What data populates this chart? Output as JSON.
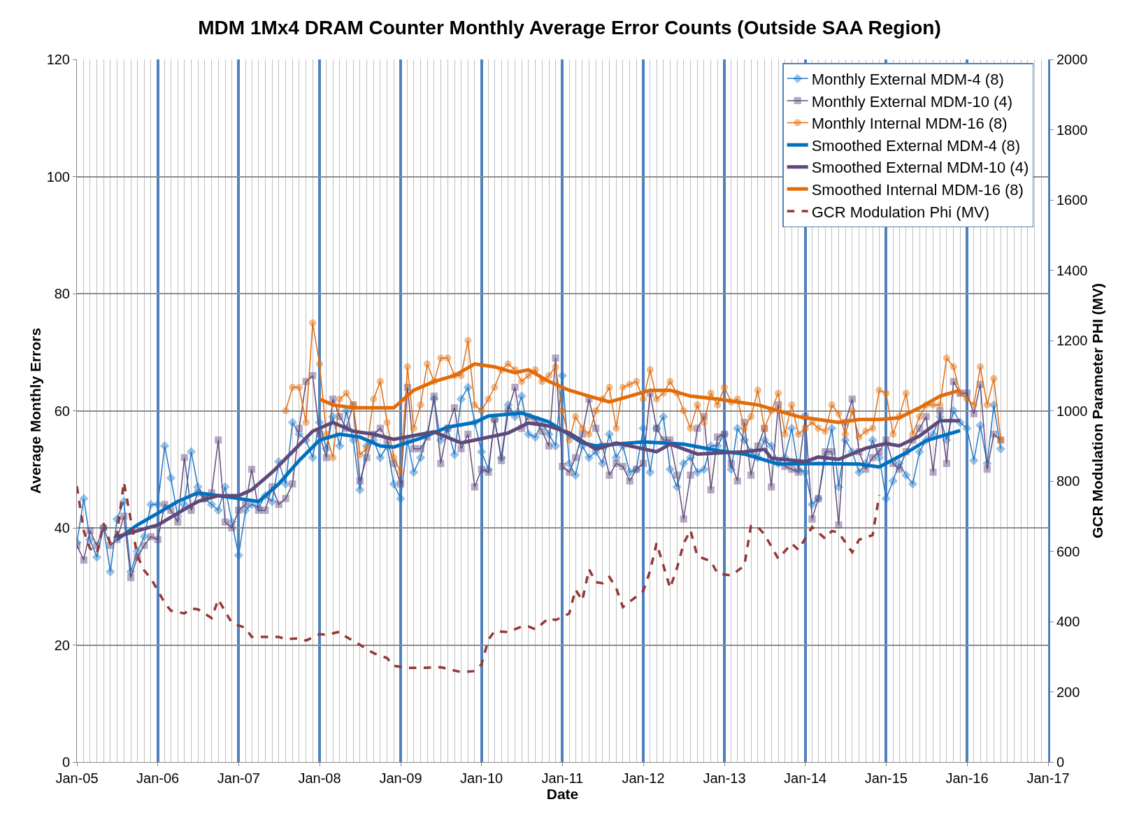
{
  "chart_data": {
    "type": "line",
    "title": "MDM 1Mx4 DRAM Counter Monthly Average Error Counts (Outside SAA Region)",
    "xlabel": "Date",
    "ylabel": "Average Monthly Errors",
    "y2label": "GCR Modulation Parameter PHI (MV)",
    "x": [
      "2005-01",
      "2005-02",
      "2005-03",
      "2005-04",
      "2005-05",
      "2005-06",
      "2005-07",
      "2005-08",
      "2005-09",
      "2005-10",
      "2005-11",
      "2005-12",
      "2006-01",
      "2006-02",
      "2006-03",
      "2006-04",
      "2006-05",
      "2006-06",
      "2006-07",
      "2006-08",
      "2006-09",
      "2006-10",
      "2006-11",
      "2006-12",
      "2007-01",
      "2007-02",
      "2007-03",
      "2007-04",
      "2007-05",
      "2007-06",
      "2007-07",
      "2007-08",
      "2007-09",
      "2007-10",
      "2007-11",
      "2007-12",
      "2008-01",
      "2008-02",
      "2008-03",
      "2008-04",
      "2008-05",
      "2008-06",
      "2008-07",
      "2008-08",
      "2008-09",
      "2008-10",
      "2008-11",
      "2008-12",
      "2009-01",
      "2009-02",
      "2009-03",
      "2009-04",
      "2009-05",
      "2009-06",
      "2009-07",
      "2009-08",
      "2009-09",
      "2009-10",
      "2009-11",
      "2009-12",
      "2010-01",
      "2010-02",
      "2010-03",
      "2010-04",
      "2010-05",
      "2010-06",
      "2010-07",
      "2010-08",
      "2010-09",
      "2010-10",
      "2010-11",
      "2010-12",
      "2011-01",
      "2011-02",
      "2011-03",
      "2011-04",
      "2011-05",
      "2011-06",
      "2011-07",
      "2011-08",
      "2011-09",
      "2011-10",
      "2011-11",
      "2011-12",
      "2012-01",
      "2012-02",
      "2012-03",
      "2012-04",
      "2012-05",
      "2012-06",
      "2012-07",
      "2012-08",
      "2012-09",
      "2012-10",
      "2012-11",
      "2012-12",
      "2013-01",
      "2013-02",
      "2013-03",
      "2013-04",
      "2013-05",
      "2013-06",
      "2013-07",
      "2013-08",
      "2013-09",
      "2013-10",
      "2013-11",
      "2013-12",
      "2014-01",
      "2014-02",
      "2014-03",
      "2014-04",
      "2014-05",
      "2014-06",
      "2014-07",
      "2014-08",
      "2014-09",
      "2014-10",
      "2014-11",
      "2014-12",
      "2015-01",
      "2015-02",
      "2015-03",
      "2015-04",
      "2015-05",
      "2015-06",
      "2015-07",
      "2015-08",
      "2015-09",
      "2015-10",
      "2015-11",
      "2015-12",
      "2016-01",
      "2016-02",
      "2016-03",
      "2016-04",
      "2016-05",
      "2016-06"
    ],
    "series": [
      {
        "name": "Monthly External MDM-4 (8)",
        "color": "#1f78c8",
        "marker": "diamond",
        "values": [
          37.5,
          45,
          38,
          35,
          40,
          32.5,
          41.5,
          44.5,
          32.5,
          36,
          38.5,
          44,
          44,
          54,
          48.5,
          42,
          44,
          53,
          47,
          45,
          44,
          43,
          47,
          41,
          35.3,
          43,
          44,
          43.5,
          45.5,
          44.5,
          51.3,
          47.5,
          58,
          56,
          55,
          52,
          58,
          53.5,
          59,
          54,
          60,
          55,
          46.5,
          54,
          55,
          52,
          54,
          47.5,
          45,
          55,
          49.5,
          52,
          56,
          62,
          55,
          57,
          52.5,
          62,
          64,
          58,
          53,
          50,
          58.5,
          52,
          61,
          59,
          62.5,
          56,
          55.5,
          58,
          56,
          54,
          66,
          51,
          49,
          54,
          52,
          53,
          51,
          56,
          52,
          54,
          49.5,
          50,
          57,
          49.5,
          57,
          59,
          50,
          47,
          51,
          52,
          49.5,
          50,
          54,
          54,
          56,
          50,
          57,
          55,
          53,
          52,
          55,
          54,
          51,
          52,
          57,
          50,
          49.5,
          44,
          45,
          52,
          57,
          47,
          55,
          53,
          49.5,
          51,
          55,
          52,
          45,
          48,
          51,
          49,
          47.5,
          53,
          55,
          56,
          59,
          55,
          60,
          58,
          57,
          51.5,
          57.5,
          51,
          61,
          53.5
        ]
      },
      {
        "name": "Monthly External MDM-10 (4)",
        "color": "#604a7b",
        "marker": "square",
        "values": [
          37,
          34.5,
          39.5,
          37,
          40,
          37,
          38,
          42,
          31.5,
          35,
          37,
          38.5,
          38,
          44,
          43,
          41,
          52,
          43,
          46,
          45,
          46,
          55,
          41,
          40,
          43,
          44,
          50,
          43,
          43,
          47,
          44,
          45,
          47.5,
          57,
          65,
          66,
          56,
          52,
          62,
          59,
          57,
          61,
          48,
          52,
          56,
          57,
          55,
          51,
          47.5,
          64,
          53.5,
          53.5,
          55.5,
          62.5,
          51,
          57,
          60.5,
          53.5,
          56,
          47,
          50,
          49.5,
          58.5,
          51.5,
          60,
          64,
          57,
          59,
          58.5,
          56.5,
          54,
          69,
          50.5,
          49.5,
          52,
          56,
          62,
          57,
          54,
          49,
          51,
          50.5,
          48,
          50,
          51,
          63,
          57,
          55,
          55,
          49,
          41.5,
          49,
          57,
          59,
          46.5,
          55.5,
          56,
          51,
          48,
          58,
          49,
          54,
          57,
          47,
          61,
          50.5,
          50,
          49.5,
          59,
          41.5,
          45,
          53,
          53,
          40.5,
          58,
          62,
          53,
          50,
          52,
          53,
          55,
          51,
          50,
          53,
          55,
          57,
          59,
          49.5,
          60,
          51,
          65,
          63,
          63,
          59.5,
          64.5,
          50,
          56,
          55
        ]
      },
      {
        "name": "Monthly Internal MDM-16 (8)",
        "color": "#e46c0a",
        "marker": "circle",
        "values": [
          null,
          null,
          null,
          null,
          null,
          null,
          null,
          null,
          null,
          null,
          null,
          null,
          null,
          null,
          null,
          null,
          null,
          null,
          null,
          null,
          null,
          null,
          null,
          null,
          null,
          null,
          null,
          null,
          null,
          null,
          null,
          60,
          64,
          64,
          58,
          75,
          68,
          56,
          52,
          62,
          63,
          61,
          52.5,
          53.5,
          62,
          65,
          58,
          52,
          49.5,
          67.5,
          57,
          61,
          68,
          65,
          69,
          69,
          66,
          66,
          72,
          61,
          60,
          62,
          64,
          67,
          68,
          67,
          65,
          66,
          67,
          65,
          66,
          67.5,
          60,
          55,
          59,
          57,
          56,
          60,
          62,
          64,
          57,
          64,
          64.5,
          65,
          62,
          67,
          62,
          63,
          65,
          63,
          60,
          57,
          61,
          58,
          63,
          61,
          64,
          61.5,
          62,
          57,
          59,
          63.5,
          57,
          60,
          63,
          56,
          61,
          56,
          57,
          58,
          57,
          56.5,
          61,
          59.5,
          56,
          60,
          55.5,
          56.5,
          57,
          63.5,
          63,
          56,
          59,
          63,
          56,
          59,
          61,
          61,
          61,
          69,
          67.5,
          63,
          62,
          61,
          67.5,
          61,
          65.5,
          55
        ]
      },
      {
        "name": "Smoothed External MDM-4 (8)",
        "color": "#0070c0",
        "marker": "none",
        "x": [
          "2005-07",
          "2005-10",
          "2006-01",
          "2006-04",
          "2006-07",
          "2006-10",
          "2007-01",
          "2007-04",
          "2007-07",
          "2007-10",
          "2008-01",
          "2008-04",
          "2008-07",
          "2008-10",
          "2008-12",
          "2009-04",
          "2009-08",
          "2009-12",
          "2010-02",
          "2010-07",
          "2010-11",
          "2011-04",
          "2011-06",
          "2012-01",
          "2012-07",
          "2012-12",
          "2013-04",
          "2013-09",
          "2014-03",
          "2014-09",
          "2014-12",
          "2015-04",
          "2015-07",
          "2015-12"
        ],
        "values": [
          38,
          40.5,
          42.5,
          44.5,
          46,
          45.5,
          45,
          44.5,
          47.5,
          51.5,
          55,
          56,
          55.5,
          54,
          53.8,
          55.3,
          57.2,
          58,
          59.1,
          59.6,
          58.1,
          54.5,
          54,
          54.7,
          54.3,
          53.2,
          52.6,
          50.9,
          51,
          50.9,
          50.4,
          52.8,
          54.9,
          56.6
        ]
      },
      {
        "name": "Smoothed External MDM-10 (4)",
        "color": "#5f497a",
        "marker": "none",
        "x": [
          "2005-07",
          "2005-10",
          "2006-01",
          "2006-04",
          "2006-07",
          "2006-10",
          "2007-01",
          "2007-03",
          "2007-06",
          "2007-09",
          "2007-12",
          "2008-03",
          "2008-06",
          "2008-09",
          "2008-12",
          "2009-06",
          "2009-10",
          "2010-05",
          "2010-08",
          "2010-11",
          "2011-02",
          "2011-06",
          "2011-09",
          "2012-03",
          "2012-05",
          "2012-09",
          "2013-04",
          "2013-07",
          "2013-08",
          "2014-01",
          "2014-03",
          "2014-06",
          "2014-10",
          "2015-01",
          "2015-03",
          "2015-06",
          "2015-09",
          "2015-12"
        ],
        "values": [
          38.5,
          39.5,
          40.5,
          42.5,
          44.5,
          45.5,
          45.5,
          46.5,
          49.5,
          53,
          56.5,
          58,
          56.5,
          56,
          55.1,
          56.4,
          54.5,
          56.2,
          57.9,
          57.4,
          56.2,
          53.4,
          54.5,
          53,
          54.3,
          52.6,
          53,
          53.4,
          51.9,
          51.3,
          52.1,
          51.7,
          53.6,
          54.4,
          54,
          55.7,
          58.3,
          58.3
        ]
      },
      {
        "name": "Smoothed Internal MDM-16 (8)",
        "color": "#e36c09",
        "marker": "none",
        "x": [
          "2008-01",
          "2008-03",
          "2008-06",
          "2008-09",
          "2008-12",
          "2009-03",
          "2009-06",
          "2009-09",
          "2009-12",
          "2010-03",
          "2010-06",
          "2010-08",
          "2010-11",
          "2011-02",
          "2011-05",
          "2011-08",
          "2011-11",
          "2012-02",
          "2012-05",
          "2012-08",
          "2012-12",
          "2013-03",
          "2013-06",
          "2013-09",
          "2013-12",
          "2014-03",
          "2014-06",
          "2014-09",
          "2014-12",
          "2015-03",
          "2015-06",
          "2015-09",
          "2015-12"
        ],
        "values": [
          62,
          61,
          60.5,
          60.5,
          60.5,
          63.5,
          65,
          66,
          68,
          67.5,
          66.5,
          67,
          65,
          63.5,
          62.5,
          61.5,
          62.5,
          63.5,
          63.5,
          62.5,
          62,
          61.5,
          61,
          60,
          59,
          58.5,
          58,
          58.5,
          58.5,
          58.8,
          60.5,
          62.5,
          63.5
        ]
      },
      {
        "name": "GCR Modulation Phi (MV)",
        "color": "#953735",
        "marker": "none",
        "line_style": "dashed",
        "axis": "y2",
        "x": [
          "2005-01",
          "2005-02",
          "2005-03",
          "2005-04",
          "2005-05",
          "2005-06",
          "2005-07",
          "2005-08",
          "2005-10",
          "2005-11",
          "2005-12",
          "2006-02",
          "2006-03",
          "2006-05",
          "2006-06",
          "2006-07",
          "2006-09",
          "2006-10",
          "2006-12",
          "2007-02",
          "2007-03",
          "2007-05",
          "2007-07",
          "2007-08",
          "2007-10",
          "2007-11",
          "2008-01",
          "2008-02",
          "2008-04",
          "2008-05",
          "2008-07",
          "2008-09",
          "2008-11",
          "2008-12",
          "2009-02",
          "2009-04",
          "2009-07",
          "2009-10",
          "2009-12",
          "2010-01",
          "2010-02",
          "2010-03",
          "2010-05",
          "2010-07",
          "2010-08",
          "2010-09",
          "2010-11",
          "2010-12",
          "2011-02",
          "2011-03",
          "2011-04",
          "2011-05",
          "2011-06",
          "2011-07",
          "2011-08",
          "2011-09",
          "2011-10",
          "2012-01",
          "2012-02",
          "2012-03",
          "2012-04",
          "2012-05",
          "2012-06",
          "2012-07",
          "2012-08",
          "2012-09",
          "2012-11",
          "2012-12",
          "2013-02",
          "2013-04",
          "2013-05",
          "2013-06",
          "2013-07",
          "2013-09",
          "2013-11",
          "2013-12",
          "2014-02",
          "2014-04",
          "2014-05",
          "2014-06",
          "2014-08",
          "2014-09",
          "2014-11",
          "2014-12"
        ],
        "values": [
          785,
          658,
          608,
          594,
          680,
          622,
          648,
          797,
          586,
          545,
          523,
          453,
          431,
          423,
          437,
          435,
          410,
          463,
          396,
          382,
          356,
          356,
          356,
          350,
          352,
          346,
          364,
          362,
          371,
          356,
          334,
          310,
          296,
          274,
          268,
          268,
          270,
          256,
          259,
          278,
          348,
          373,
          370,
          386,
          386,
          378,
          410,
          404,
          423,
          491,
          460,
          549,
          512,
          509,
          527,
          495,
          441,
          487,
          545,
          623,
          559,
          495,
          552,
          622,
          660,
          586,
          572,
          537,
          531,
          559,
          672,
          669,
          648,
          579,
          622,
          604,
          669,
          636,
          658,
          653,
          597,
          633,
          646,
          760
        ]
      }
    ],
    "xlim": [
      "2005-01",
      "2017-01"
    ],
    "xticks": [
      {
        "value": "2005-01",
        "label": "Jan-05"
      },
      {
        "value": "2006-01",
        "label": "Jan-06"
      },
      {
        "value": "2007-01",
        "label": "Jan-07"
      },
      {
        "value": "2008-01",
        "label": "Jan-08"
      },
      {
        "value": "2009-01",
        "label": "Jan-09"
      },
      {
        "value": "2010-01",
        "label": "Jan-10"
      },
      {
        "value": "2011-01",
        "label": "Jan-11"
      },
      {
        "value": "2012-01",
        "label": "Jan-12"
      },
      {
        "value": "2013-01",
        "label": "Jan-13"
      },
      {
        "value": "2014-01",
        "label": "Jan-14"
      },
      {
        "value": "2015-01",
        "label": "Jan-15"
      },
      {
        "value": "2016-01",
        "label": "Jan-16"
      },
      {
        "value": "2017-01",
        "label": "Jan-17"
      }
    ],
    "ylim": [
      0,
      120
    ],
    "yticks": [
      0,
      20,
      40,
      60,
      80,
      100,
      120
    ],
    "y2lim": [
      0,
      2000
    ],
    "y2ticks": [
      0,
      200,
      400,
      600,
      800,
      1000,
      1200,
      1400,
      1600,
      1800,
      2000
    ],
    "grid": true,
    "legend": "top right"
  }
}
